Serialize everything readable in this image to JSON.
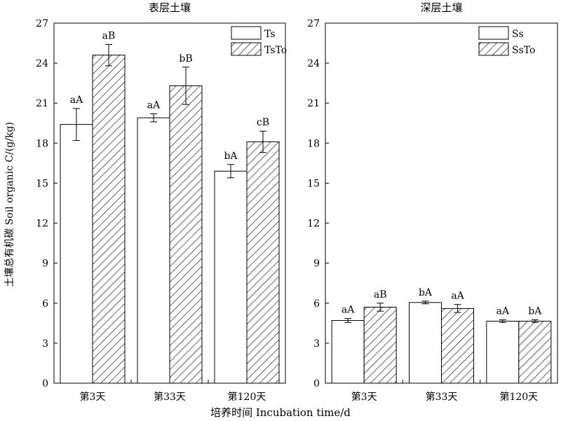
{
  "chart_data": [
    {
      "type": "bar",
      "title": "表层土壤",
      "categories": [
        "第3天",
        "第33天",
        "第120天"
      ],
      "ylim": [
        0,
        27
      ],
      "yticks": [
        0,
        3,
        6,
        9,
        12,
        15,
        18,
        21,
        24,
        27
      ],
      "legend_position": "top-right",
      "series": [
        {
          "name": "Ts",
          "pattern": "solid-white",
          "values": [
            19.4,
            19.9,
            15.9
          ],
          "errors": [
            1.2,
            0.3,
            0.5
          ],
          "labels": [
            "aA",
            "aA",
            "bA"
          ]
        },
        {
          "name": "TsTo",
          "pattern": "hatched",
          "values": [
            24.6,
            22.3,
            18.1
          ],
          "errors": [
            0.8,
            1.4,
            0.8
          ],
          "labels": [
            "aB",
            "bB",
            "cB"
          ]
        }
      ]
    },
    {
      "type": "bar",
      "title": "深层土壤",
      "categories": [
        "第3天",
        "第33天",
        "第120天"
      ],
      "ylim": [
        0,
        27
      ],
      "yticks": [
        0,
        3,
        6,
        9,
        12,
        15,
        18,
        21,
        24,
        27
      ],
      "legend_position": "top-right",
      "series": [
        {
          "name": "Ss",
          "pattern": "solid-white",
          "values": [
            4.7,
            6.05,
            4.65
          ],
          "errors": [
            0.15,
            0.1,
            0.1
          ],
          "labels": [
            "aA",
            "bA",
            "aA"
          ]
        },
        {
          "name": "SsTo",
          "pattern": "hatched",
          "values": [
            5.7,
            5.6,
            4.65
          ],
          "errors": [
            0.3,
            0.3,
            0.1
          ],
          "labels": [
            "aB",
            "aA",
            "bA"
          ]
        }
      ]
    }
  ],
  "ylabel": "土壤总有机碳 Soil organic C/(g/kg)",
  "xlabel": "培养时间 Incubation time/d"
}
